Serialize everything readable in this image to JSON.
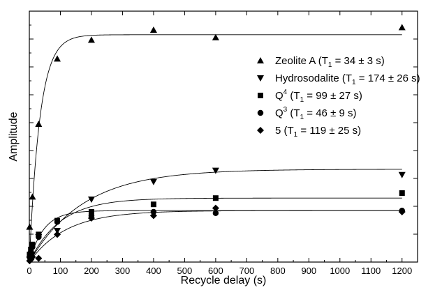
{
  "chart_data": {
    "type": "scatter",
    "xlabel": "Recycle delay (s)",
    "ylabel": "Amplitude",
    "xlim": [
      0,
      1250
    ],
    "ylim": [
      0,
      1
    ],
    "xticks": [
      0,
      100,
      200,
      300,
      400,
      500,
      600,
      700,
      800,
      900,
      1000,
      1100,
      1200
    ],
    "y_tick_labels_shown": false,
    "grid": false,
    "legend_position": "right",
    "series": [
      {
        "marker": "triangle-up",
        "legend": {
          "prefix": "Zeolite A (T",
          "sub": "1",
          "suffix": " = 34 ± 3 s)"
        },
        "T1": 34,
        "A": 0.906,
        "x": [
          1,
          5,
          10,
          30,
          90,
          200,
          400,
          600,
          1200
        ],
        "y": [
          0.14,
          0.05,
          0.26,
          0.55,
          0.81,
          0.885,
          0.925,
          0.895,
          0.935
        ]
      },
      {
        "marker": "triangle-down",
        "legend": {
          "prefix": "Hydrosodalite (T",
          "sub": "1",
          "suffix": " = 174 ± 26 s)"
        },
        "T1": 174,
        "A": 0.37,
        "x": [
          1,
          5,
          10,
          30,
          90,
          200,
          400,
          600,
          1200
        ],
        "y": [
          0.01,
          0.02,
          0.03,
          0.1,
          0.125,
          0.25,
          0.32,
          0.365,
          0.348
        ]
      },
      {
        "marker": "square",
        "legend": {
          "prefix": "Q",
          "sup": "4",
          "mid": " (T",
          "sub": "1",
          "suffix": " = 99 ± 27 s)"
        },
        "T1": 99,
        "A": 0.255,
        "x": [
          1,
          5,
          10,
          30,
          90,
          200,
          400,
          600,
          1200
        ],
        "y": [
          0.03,
          0.05,
          0.07,
          0.11,
          0.165,
          0.2,
          0.23,
          0.255,
          0.275
        ]
      },
      {
        "marker": "circle",
        "legend": {
          "prefix": "Q",
          "sup": "3",
          "mid": " (T",
          "sub": "1",
          "suffix": " = 46 ± 9 s)"
        },
        "T1": 46,
        "A": 0.205,
        "x": [
          1,
          5,
          10,
          30,
          90,
          200,
          400,
          600,
          1200
        ],
        "y": [
          0.02,
          0.035,
          0.06,
          0.1,
          0.16,
          0.185,
          0.2,
          0.195,
          0.205
        ]
      },
      {
        "marker": "diamond",
        "legend": {
          "prefix": "5 (T",
          "sub": "1",
          "suffix": " = 119 ± 25 s)"
        },
        "T1": 119,
        "A": 0.205,
        "x": [
          1,
          5,
          10,
          30,
          90,
          200,
          400,
          600,
          1200
        ],
        "y": [
          0.005,
          0.01,
          0.02,
          0.015,
          0.11,
          0.175,
          0.185,
          0.215,
          0.2
        ]
      }
    ]
  }
}
